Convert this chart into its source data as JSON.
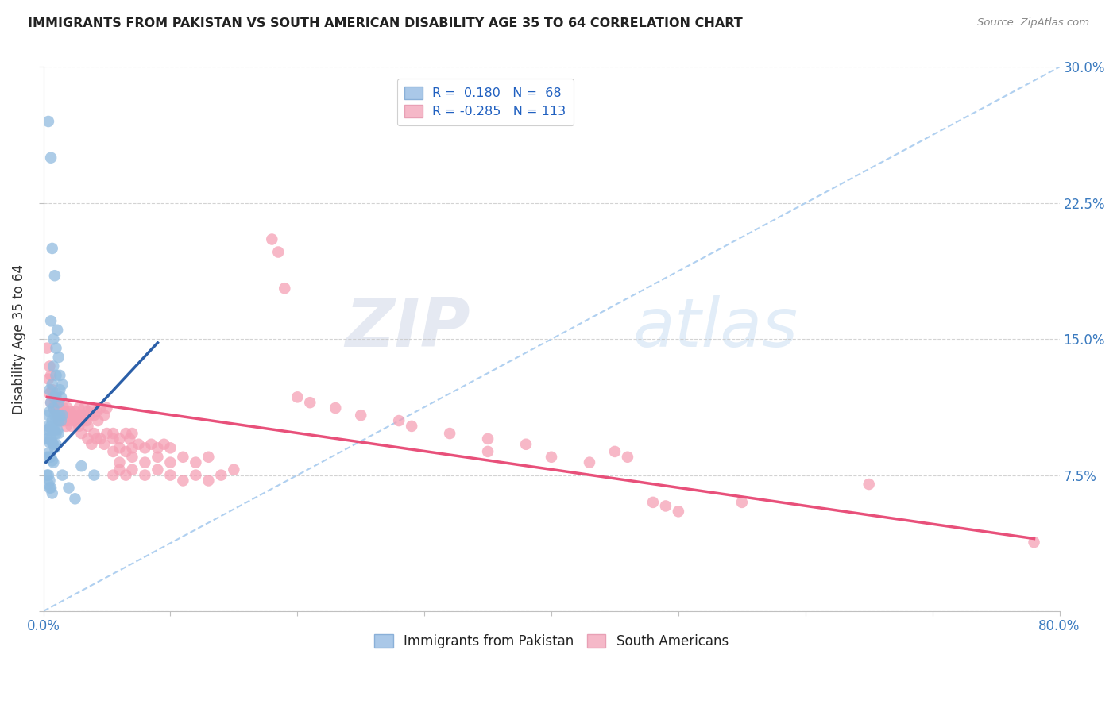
{
  "title": "IMMIGRANTS FROM PAKISTAN VS SOUTH AMERICAN DISABILITY AGE 35 TO 64 CORRELATION CHART",
  "source": "Source: ZipAtlas.com",
  "ylabel": "Disability Age 35 to 64",
  "xlim": [
    0.0,
    0.8
  ],
  "ylim": [
    0.0,
    0.3
  ],
  "pakistan_color": "#92bce0",
  "south_american_color": "#f5a0b5",
  "trendline_pakistan_color": "#2b5fa8",
  "trendline_south_american_color": "#e8507a",
  "dashed_line_color": "#b0d0f0",
  "watermark_zip": "ZIP",
  "watermark_atlas": "atlas",
  "pakistan_trendline": [
    [
      0.002,
      0.082
    ],
    [
      0.09,
      0.148
    ]
  ],
  "sa_trendline": [
    [
      0.003,
      0.118
    ],
    [
      0.78,
      0.04
    ]
  ],
  "pakistan_scatter": [
    [
      0.004,
      0.27
    ],
    [
      0.006,
      0.25
    ],
    [
      0.007,
      0.2
    ],
    [
      0.009,
      0.185
    ],
    [
      0.006,
      0.16
    ],
    [
      0.008,
      0.15
    ],
    [
      0.01,
      0.145
    ],
    [
      0.008,
      0.135
    ],
    [
      0.01,
      0.13
    ],
    [
      0.012,
      0.14
    ],
    [
      0.011,
      0.155
    ],
    [
      0.013,
      0.13
    ],
    [
      0.005,
      0.122
    ],
    [
      0.007,
      0.125
    ],
    [
      0.009,
      0.118
    ],
    [
      0.01,
      0.12
    ],
    [
      0.012,
      0.115
    ],
    [
      0.014,
      0.118
    ],
    [
      0.015,
      0.125
    ],
    [
      0.013,
      0.122
    ],
    [
      0.006,
      0.115
    ],
    [
      0.008,
      0.112
    ],
    [
      0.004,
      0.108
    ],
    [
      0.005,
      0.11
    ],
    [
      0.007,
      0.105
    ],
    [
      0.009,
      0.108
    ],
    [
      0.01,
      0.105
    ],
    [
      0.011,
      0.108
    ],
    [
      0.012,
      0.105
    ],
    [
      0.013,
      0.108
    ],
    [
      0.014,
      0.105
    ],
    [
      0.015,
      0.108
    ],
    [
      0.003,
      0.1
    ],
    [
      0.004,
      0.102
    ],
    [
      0.005,
      0.1
    ],
    [
      0.006,
      0.102
    ],
    [
      0.007,
      0.1
    ],
    [
      0.008,
      0.1
    ],
    [
      0.009,
      0.1
    ],
    [
      0.01,
      0.098
    ],
    [
      0.011,
      0.1
    ],
    [
      0.012,
      0.098
    ],
    [
      0.003,
      0.095
    ],
    [
      0.004,
      0.095
    ],
    [
      0.005,
      0.093
    ],
    [
      0.006,
      0.095
    ],
    [
      0.007,
      0.093
    ],
    [
      0.008,
      0.092
    ],
    [
      0.009,
      0.09
    ],
    [
      0.01,
      0.092
    ],
    [
      0.003,
      0.085
    ],
    [
      0.004,
      0.087
    ],
    [
      0.005,
      0.085
    ],
    [
      0.006,
      0.085
    ],
    [
      0.007,
      0.083
    ],
    [
      0.008,
      0.082
    ],
    [
      0.003,
      0.075
    ],
    [
      0.004,
      0.075
    ],
    [
      0.005,
      0.072
    ],
    [
      0.004,
      0.07
    ],
    [
      0.005,
      0.068
    ],
    [
      0.006,
      0.068
    ],
    [
      0.007,
      0.065
    ],
    [
      0.03,
      0.08
    ],
    [
      0.04,
      0.075
    ],
    [
      0.015,
      0.075
    ],
    [
      0.02,
      0.068
    ],
    [
      0.025,
      0.062
    ]
  ],
  "south_american_scatter": [
    [
      0.003,
      0.145
    ],
    [
      0.005,
      0.135
    ],
    [
      0.004,
      0.128
    ],
    [
      0.006,
      0.13
    ],
    [
      0.005,
      0.12
    ],
    [
      0.007,
      0.122
    ],
    [
      0.008,
      0.118
    ],
    [
      0.006,
      0.115
    ],
    [
      0.008,
      0.112
    ],
    [
      0.01,
      0.118
    ],
    [
      0.009,
      0.115
    ],
    [
      0.011,
      0.112
    ],
    [
      0.01,
      0.11
    ],
    [
      0.012,
      0.115
    ],
    [
      0.013,
      0.112
    ],
    [
      0.011,
      0.108
    ],
    [
      0.012,
      0.105
    ],
    [
      0.014,
      0.11
    ],
    [
      0.015,
      0.108
    ],
    [
      0.013,
      0.105
    ],
    [
      0.016,
      0.112
    ],
    [
      0.014,
      0.108
    ],
    [
      0.015,
      0.105
    ],
    [
      0.017,
      0.11
    ],
    [
      0.018,
      0.108
    ],
    [
      0.016,
      0.105
    ],
    [
      0.019,
      0.112
    ],
    [
      0.02,
      0.108
    ],
    [
      0.017,
      0.105
    ],
    [
      0.021,
      0.11
    ],
    [
      0.022,
      0.108
    ],
    [
      0.018,
      0.102
    ],
    [
      0.02,
      0.105
    ],
    [
      0.023,
      0.108
    ],
    [
      0.025,
      0.11
    ],
    [
      0.024,
      0.105
    ],
    [
      0.026,
      0.108
    ],
    [
      0.028,
      0.112
    ],
    [
      0.022,
      0.102
    ],
    [
      0.03,
      0.108
    ],
    [
      0.025,
      0.105
    ],
    [
      0.028,
      0.102
    ],
    [
      0.032,
      0.112
    ],
    [
      0.03,
      0.105
    ],
    [
      0.033,
      0.108
    ],
    [
      0.035,
      0.11
    ],
    [
      0.034,
      0.105
    ],
    [
      0.036,
      0.108
    ],
    [
      0.038,
      0.112
    ],
    [
      0.04,
      0.108
    ],
    [
      0.035,
      0.102
    ],
    [
      0.042,
      0.11
    ],
    [
      0.045,
      0.112
    ],
    [
      0.043,
      0.105
    ],
    [
      0.048,
      0.108
    ],
    [
      0.05,
      0.112
    ],
    [
      0.03,
      0.098
    ],
    [
      0.035,
      0.095
    ],
    [
      0.04,
      0.098
    ],
    [
      0.045,
      0.095
    ],
    [
      0.05,
      0.098
    ],
    [
      0.055,
      0.095
    ],
    [
      0.038,
      0.092
    ],
    [
      0.042,
      0.095
    ],
    [
      0.048,
      0.092
    ],
    [
      0.055,
      0.098
    ],
    [
      0.06,
      0.095
    ],
    [
      0.065,
      0.098
    ],
    [
      0.068,
      0.095
    ],
    [
      0.07,
      0.098
    ],
    [
      0.055,
      0.088
    ],
    [
      0.06,
      0.09
    ],
    [
      0.065,
      0.088
    ],
    [
      0.07,
      0.09
    ],
    [
      0.075,
      0.092
    ],
    [
      0.08,
      0.09
    ],
    [
      0.085,
      0.092
    ],
    [
      0.09,
      0.09
    ],
    [
      0.095,
      0.092
    ],
    [
      0.1,
      0.09
    ],
    [
      0.06,
      0.082
    ],
    [
      0.07,
      0.085
    ],
    [
      0.08,
      0.082
    ],
    [
      0.09,
      0.085
    ],
    [
      0.1,
      0.082
    ],
    [
      0.11,
      0.085
    ],
    [
      0.12,
      0.082
    ],
    [
      0.13,
      0.085
    ],
    [
      0.055,
      0.075
    ],
    [
      0.06,
      0.078
    ],
    [
      0.065,
      0.075
    ],
    [
      0.07,
      0.078
    ],
    [
      0.08,
      0.075
    ],
    [
      0.09,
      0.078
    ],
    [
      0.1,
      0.075
    ],
    [
      0.11,
      0.072
    ],
    [
      0.12,
      0.075
    ],
    [
      0.13,
      0.072
    ],
    [
      0.14,
      0.075
    ],
    [
      0.15,
      0.078
    ],
    [
      0.18,
      0.205
    ],
    [
      0.185,
      0.198
    ],
    [
      0.19,
      0.178
    ],
    [
      0.2,
      0.118
    ],
    [
      0.21,
      0.115
    ],
    [
      0.23,
      0.112
    ],
    [
      0.25,
      0.108
    ],
    [
      0.28,
      0.105
    ],
    [
      0.29,
      0.102
    ],
    [
      0.32,
      0.098
    ],
    [
      0.35,
      0.095
    ],
    [
      0.38,
      0.092
    ],
    [
      0.35,
      0.088
    ],
    [
      0.4,
      0.085
    ],
    [
      0.43,
      0.082
    ],
    [
      0.45,
      0.088
    ],
    [
      0.46,
      0.085
    ],
    [
      0.48,
      0.06
    ],
    [
      0.49,
      0.058
    ],
    [
      0.5,
      0.055
    ],
    [
      0.55,
      0.06
    ],
    [
      0.65,
      0.07
    ],
    [
      0.78,
      0.038
    ]
  ]
}
